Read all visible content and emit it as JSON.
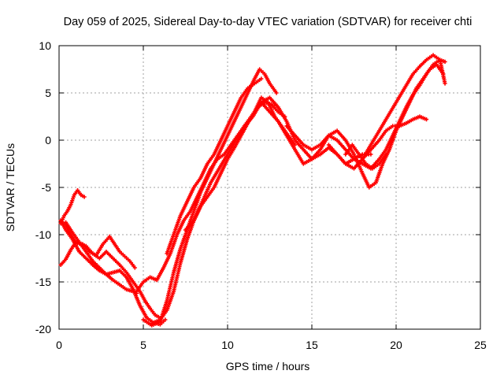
{
  "chart_data": {
    "type": "scatter",
    "title": "Day 059 of 2025, Sidereal Day-to-day VTEC variation (SDTVAR) for receiver chti",
    "xlabel": "GPS time / hours",
    "ylabel": "SDTVAR / TECUs",
    "xlim": [
      0,
      25
    ],
    "ylim": [
      -20,
      10
    ],
    "x_ticks": [
      "0",
      "5",
      "10",
      "15",
      "20",
      "25"
    ],
    "y_ticks": [
      "-20",
      "-15",
      "-10",
      "-5",
      "0",
      "5",
      "10"
    ],
    "grid": true,
    "marker": "+",
    "color": "#ff0000",
    "series": [
      {
        "x": [
          0.1,
          0.3,
          0.5,
          0.7,
          0.9,
          1.1,
          1.3,
          1.5
        ],
        "y": [
          -8.8,
          -8.0,
          -7.5,
          -6.8,
          -5.8,
          -5.3,
          -5.8,
          -6.0
        ]
      },
      {
        "x": [
          0.1,
          0.4,
          0.7,
          1.0,
          1.3,
          1.6,
          2.0,
          2.4,
          2.8,
          3.2,
          3.6,
          4.0,
          4.4,
          4.8,
          5.1,
          5.4,
          5.7,
          6.0
        ],
        "y": [
          -8.5,
          -9.0,
          -10.0,
          -10.8,
          -11.0,
          -11.2,
          -12.0,
          -12.5,
          -11.8,
          -12.5,
          -13.2,
          -14.0,
          -15.0,
          -16.0,
          -17.0,
          -17.8,
          -18.5,
          -18.8
        ]
      },
      {
        "x": [
          0.1,
          0.4,
          0.7,
          1.0,
          1.4,
          1.8,
          2.2,
          2.6,
          3.0,
          3.3,
          3.6,
          3.9,
          4.2,
          4.5
        ],
        "y": [
          -13.2,
          -12.6,
          -11.6,
          -10.8,
          -11.0,
          -11.8,
          -12.2,
          -11.0,
          -10.2,
          -11.0,
          -11.8,
          -12.3,
          -12.8,
          -13.5
        ]
      },
      {
        "x": [
          0.1,
          0.4,
          0.8,
          1.2,
          1.6,
          2.0,
          2.4,
          2.8,
          3.2,
          3.6,
          4.0,
          4.4,
          4.8,
          5.2,
          5.6,
          6.0,
          6.3
        ],
        "y": [
          -8.5,
          -9.5,
          -10.5,
          -11.8,
          -12.5,
          -13.2,
          -13.8,
          -14.2,
          -14.0,
          -13.8,
          -14.5,
          -15.8,
          -17.5,
          -18.8,
          -19.3,
          -19.5,
          -19.0
        ]
      },
      {
        "x": [
          0.4,
          0.8,
          1.2,
          1.6,
          2.0,
          2.4,
          2.8,
          3.2,
          3.6,
          4.0,
          4.4,
          4.6
        ],
        "y": [
          -8.7,
          -9.8,
          -10.8,
          -11.8,
          -12.8,
          -13.5,
          -14.2,
          -14.8,
          -15.3,
          -15.8,
          -16.0,
          -16.2
        ]
      },
      {
        "x": [
          4.6,
          5.0,
          5.4,
          5.8,
          6.2,
          6.6,
          7.0,
          7.4,
          7.8,
          8.2,
          8.6,
          9.0,
          9.4,
          9.8,
          10.2,
          10.6,
          11.0,
          11.4,
          11.8,
          12.2,
          12.6,
          13.0,
          13.4
        ],
        "y": [
          -16.0,
          -15.0,
          -14.5,
          -14.8,
          -13.5,
          -12.0,
          -10.0,
          -8.5,
          -7.5,
          -6.0,
          -4.5,
          -3.0,
          -2.0,
          -1.5,
          -0.5,
          0.5,
          1.5,
          2.5,
          3.5,
          4.0,
          3.8,
          3.0,
          2.5
        ]
      },
      {
        "x": [
          5.0,
          5.5,
          6.0,
          6.4,
          6.8,
          7.2,
          7.6,
          8.0,
          8.4,
          8.8,
          9.2,
          9.6,
          10.0,
          10.4,
          10.8,
          11.2,
          11.6,
          11.9,
          12.2,
          12.5,
          12.9
        ],
        "y": [
          -19.0,
          -19.6,
          -19.2,
          -17.0,
          -14.0,
          -11.5,
          -9.5,
          -7.5,
          -5.5,
          -4.0,
          -2.5,
          -1.0,
          0.5,
          2.0,
          3.5,
          5.0,
          6.5,
          7.5,
          7.0,
          6.0,
          5.0
        ]
      },
      {
        "x": [
          5.5,
          6.0,
          6.4,
          6.8,
          7.2,
          7.6,
          8.0,
          8.4,
          8.8,
          9.2,
          9.6,
          10.0,
          10.4,
          10.8,
          11.2,
          11.6,
          12.0,
          12.4,
          12.8,
          13.2,
          13.6,
          14.0
        ],
        "y": [
          -19.4,
          -19.0,
          -18.0,
          -16.0,
          -13.0,
          -10.5,
          -8.5,
          -7.0,
          -6.0,
          -5.0,
          -3.5,
          -2.0,
          -0.8,
          0.5,
          1.8,
          3.0,
          4.5,
          4.0,
          2.5,
          1.5,
          0.5,
          -0.5
        ]
      },
      {
        "x": [
          6.4,
          6.8,
          7.2,
          7.6,
          8.0,
          8.4,
          8.8,
          9.2,
          9.6,
          10.0,
          10.4,
          10.8,
          11.2,
          11.6,
          12.0
        ],
        "y": [
          -12.0,
          -10.0,
          -8.0,
          -6.5,
          -5.0,
          -4.0,
          -2.5,
          -1.5,
          0.0,
          1.5,
          3.0,
          4.5,
          5.5,
          6.0,
          6.5
        ]
      },
      {
        "x": [
          7.5,
          8.0,
          8.5,
          9.0,
          9.5,
          10.0,
          10.5,
          11.0,
          11.5,
          12.0,
          12.5,
          13.0,
          13.5,
          14.0,
          14.5,
          15.0,
          15.5,
          16.0,
          16.5,
          17.0,
          17.5,
          18.0,
          18.5
        ],
        "y": [
          -9.5,
          -8.5,
          -6.5,
          -4.5,
          -3.0,
          -1.5,
          0.0,
          1.5,
          2.5,
          4.0,
          4.5,
          3.5,
          2.0,
          0.0,
          -1.0,
          -2.0,
          -1.5,
          -0.8,
          -1.5,
          -2.5,
          -2.0,
          -1.5,
          -1.5
        ]
      },
      {
        "x": [
          12.0,
          12.5,
          13.0,
          13.5,
          14.0,
          14.5,
          15.0,
          15.5,
          16.0,
          16.5,
          17.0,
          17.5,
          18.0,
          18.5,
          19.0,
          19.4,
          19.8,
          20.2,
          20.6,
          21.0,
          21.4,
          21.8,
          22.2,
          22.6,
          22.9
        ],
        "y": [
          4.0,
          3.0,
          2.0,
          0.5,
          -1.0,
          -2.5,
          -2.0,
          -1.0,
          0.5,
          0.0,
          -1.0,
          -2.0,
          -2.5,
          -3.0,
          -2.0,
          -1.0,
          0.5,
          2.0,
          3.5,
          4.8,
          5.8,
          7.0,
          8.0,
          8.5,
          8.3
        ]
      },
      {
        "x": [
          13.5,
          14.0,
          14.5,
          15.0,
          15.5,
          16.0,
          16.5,
          17.0,
          17.5,
          18.0,
          18.4,
          18.8,
          19.2,
          19.6,
          20.0,
          20.4,
          20.8,
          21.2,
          21.6,
          22.0,
          22.4,
          22.8
        ],
        "y": [
          1.5,
          0.5,
          -0.5,
          -1.0,
          -0.5,
          0.5,
          1.0,
          0.0,
          -1.5,
          -3.5,
          -5.0,
          -4.5,
          -2.5,
          -1.0,
          1.0,
          2.5,
          4.0,
          5.5,
          6.5,
          7.5,
          8.0,
          7.0
        ]
      },
      {
        "x": [
          16.0,
          16.5,
          17.0,
          17.5,
          18.0,
          18.5,
          19.0,
          19.5,
          20.0,
          20.5,
          21.0,
          21.4,
          21.8,
          22.2,
          22.6,
          22.9
        ],
        "y": [
          -0.5,
          -1.5,
          -2.5,
          -3.0,
          -2.0,
          -0.5,
          1.0,
          2.5,
          4.0,
          5.5,
          7.0,
          7.8,
          8.5,
          9.0,
          8.5,
          6.0
        ]
      },
      {
        "x": [
          18.0,
          18.5,
          19.0,
          19.4,
          19.8,
          20.2,
          20.6,
          21.0,
          21.4,
          21.8
        ],
        "y": [
          -2.0,
          -1.0,
          0.0,
          1.0,
          1.5,
          1.5,
          1.8,
          2.2,
          2.5,
          2.2
        ]
      },
      {
        "x": [
          17.0,
          17.4,
          17.8,
          18.2,
          18.6,
          19.0,
          19.4
        ],
        "y": [
          -1.5,
          -0.5,
          -1.5,
          -2.5,
          -3.0,
          -2.5,
          -1.5
        ]
      }
    ]
  }
}
